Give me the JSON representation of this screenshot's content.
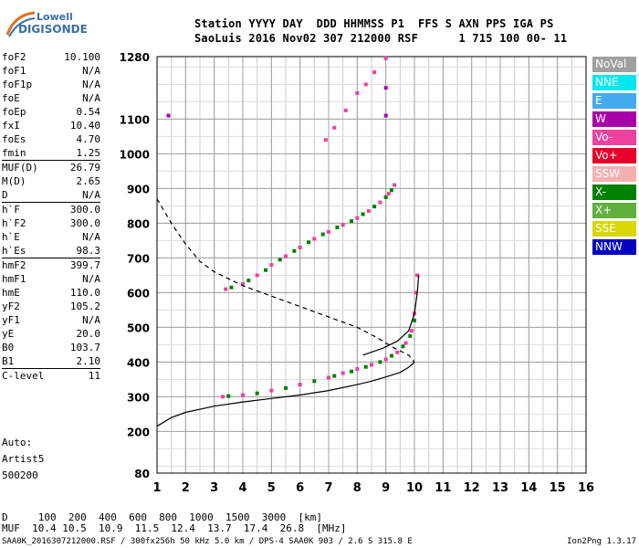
{
  "header": {
    "line1": "Station YYYY DAY  DDD HHMMSS P1  FFS S AXN PPS IGA PS",
    "line2": "SaoLuis 2016 Nov02 307 212000 RSF      1 715 100 00- 11"
  },
  "logo": {
    "line1": "Lowell",
    "line2": "DIGISONDE"
  },
  "params": [
    {
      "label": "foF2",
      "value": "10.100"
    },
    {
      "label": "foF1",
      "value": "N/A"
    },
    {
      "label": "foF1p",
      "value": "N/A"
    },
    {
      "label": "foE",
      "value": "N/A"
    },
    {
      "label": "foEp",
      "value": "0.54"
    },
    {
      "label": "fxI",
      "value": "10.40"
    },
    {
      "label": "foEs",
      "value": "4.70"
    },
    {
      "label": "fmin",
      "value": "1.25"
    },
    {
      "label": "MUF(D)",
      "value": "26.79",
      "sep": true
    },
    {
      "label": "M(D)",
      "value": "2.65"
    },
    {
      "label": "D",
      "value": "N/A"
    },
    {
      "label": "h`F",
      "value": "300.0",
      "sep": true
    },
    {
      "label": "h`F2",
      "value": "300.0"
    },
    {
      "label": "h`E",
      "value": "N/A"
    },
    {
      "label": "h`Es",
      "value": "98.3"
    },
    {
      "label": "hmF2",
      "value": "399.7",
      "sep": true
    },
    {
      "label": "hmF1",
      "value": "N/A"
    },
    {
      "label": "hmE",
      "value": "110.0"
    },
    {
      "label": "yF2",
      "value": "105.2"
    },
    {
      "label": "yF1",
      "value": "N/A"
    },
    {
      "label": "yE",
      "value": "20.0"
    },
    {
      "label": "B0",
      "value": "103.7"
    },
    {
      "label": "B1",
      "value": "2.10"
    },
    {
      "label": "C-level",
      "value": "11",
      "sep": true
    }
  ],
  "auto": {
    "line1": "Auto:",
    "line2": "Artist5",
    "line3": "500200"
  },
  "legend": [
    {
      "label": "NoVal",
      "color": "#a0a0a0"
    },
    {
      "label": "NNE",
      "color": "#00e8f0"
    },
    {
      "label": "E",
      "color": "#44aaee"
    },
    {
      "label": "W",
      "color": "#a800a8"
    },
    {
      "label": "Vo-",
      "color": "#f040a0"
    },
    {
      "label": "Vo+",
      "color": "#e8002a"
    },
    {
      "label": "SSW",
      "color": "#f4b0b0"
    },
    {
      "label": "X-",
      "color": "#008000"
    },
    {
      "label": "X+",
      "color": "#60b040"
    },
    {
      "label": "SSE",
      "color": "#d8d800"
    },
    {
      "label": "NNW",
      "color": "#0000c0"
    }
  ],
  "footer": {
    "line1": "D     100  200  400  600  800  1000  1500  3000  [km]",
    "line2": "MUF  10.4 10.5  10.9  11.5  12.4  13.7  17.4  26.8  [MHz]",
    "filename": "SAA0K_2016307212000.RSF / 300fx256h 50 kHz 5.0 km / DPS-4 SAA0K 903 / 2.6 S 315.8 E",
    "version": "Ion2Png 1.3.17"
  },
  "chart_data": {
    "type": "scatter",
    "xlim": [
      1,
      16
    ],
    "ylim": [
      80,
      1280
    ],
    "x_ticks": [
      1,
      2,
      3,
      4,
      5,
      6,
      7,
      8,
      9,
      10,
      11,
      12,
      13,
      14,
      15,
      16
    ],
    "y_ticks": [
      80,
      200,
      300,
      400,
      500,
      600,
      700,
      800,
      900,
      1000,
      1100,
      1280
    ],
    "y_tick_labels": [
      "80",
      "200",
      "300",
      "400",
      "500",
      "600",
      "700",
      "800",
      "900",
      "1000",
      "1100",
      "1280"
    ],
    "series": [
      {
        "color": "#f040a0",
        "points": [
          [
            3.3,
            300
          ],
          [
            4.0,
            305
          ],
          [
            5.0,
            318
          ],
          [
            6.0,
            335
          ],
          [
            7.0,
            355
          ],
          [
            7.5,
            368
          ],
          [
            8.0,
            380
          ],
          [
            8.5,
            392
          ],
          [
            9.0,
            408
          ],
          [
            9.4,
            428
          ],
          [
            9.7,
            455
          ],
          [
            9.9,
            490
          ],
          [
            10.0,
            540
          ],
          [
            10.05,
            600
          ],
          [
            10.1,
            650
          ]
        ]
      },
      {
        "color": "#008000",
        "points": [
          [
            3.5,
            302
          ],
          [
            4.5,
            310
          ],
          [
            5.5,
            325
          ],
          [
            6.5,
            345
          ],
          [
            7.2,
            360
          ],
          [
            7.8,
            373
          ],
          [
            8.3,
            386
          ],
          [
            8.8,
            400
          ],
          [
            9.2,
            418
          ],
          [
            9.6,
            445
          ],
          [
            9.85,
            475
          ],
          [
            10.0,
            520
          ]
        ]
      },
      {
        "color": "#f040a0",
        "points": [
          [
            3.4,
            610
          ],
          [
            4.0,
            625
          ],
          [
            4.5,
            650
          ],
          [
            5.0,
            680
          ],
          [
            5.5,
            705
          ],
          [
            6.0,
            730
          ],
          [
            6.5,
            755
          ],
          [
            7.0,
            775
          ],
          [
            7.5,
            795
          ],
          [
            8.0,
            815
          ],
          [
            8.4,
            835
          ],
          [
            8.8,
            860
          ],
          [
            9.1,
            885
          ],
          [
            9.3,
            910
          ]
        ]
      },
      {
        "color": "#008000",
        "points": [
          [
            3.6,
            615
          ],
          [
            4.2,
            635
          ],
          [
            4.8,
            665
          ],
          [
            5.3,
            695
          ],
          [
            5.8,
            720
          ],
          [
            6.3,
            745
          ],
          [
            6.8,
            768
          ],
          [
            7.3,
            788
          ],
          [
            7.8,
            806
          ],
          [
            8.2,
            826
          ],
          [
            8.6,
            848
          ],
          [
            9.0,
            875
          ],
          [
            9.2,
            895
          ]
        ]
      },
      {
        "color": "#f040a0",
        "points": [
          [
            6.9,
            1040
          ],
          [
            7.2,
            1075
          ],
          [
            7.6,
            1125
          ],
          [
            8.0,
            1175
          ],
          [
            8.3,
            1200
          ],
          [
            8.6,
            1235
          ],
          [
            9.0,
            1275
          ]
        ]
      },
      {
        "color": "#a800a8",
        "points": [
          [
            1.4,
            1110
          ],
          [
            9.0,
            1190
          ],
          [
            9.0,
            1110
          ]
        ]
      }
    ],
    "curves": [
      {
        "style": "solid",
        "points": [
          [
            1.0,
            215
          ],
          [
            1.5,
            240
          ],
          [
            2.0,
            255
          ],
          [
            3.0,
            273
          ],
          [
            4.0,
            285
          ],
          [
            5.0,
            295
          ],
          [
            6.0,
            305
          ],
          [
            7.0,
            318
          ],
          [
            8.0,
            335
          ],
          [
            8.5,
            345
          ],
          [
            9.0,
            357
          ],
          [
            9.5,
            370
          ],
          [
            9.8,
            385
          ],
          [
            10.0,
            400
          ]
        ]
      },
      {
        "style": "solid",
        "points": [
          [
            8.2,
            420
          ],
          [
            8.9,
            440
          ],
          [
            9.4,
            460
          ],
          [
            9.8,
            490
          ],
          [
            10.0,
            540
          ],
          [
            10.1,
            600
          ],
          [
            10.15,
            650
          ]
        ]
      },
      {
        "style": "dashed",
        "points": [
          [
            1.0,
            870
          ],
          [
            1.5,
            800
          ],
          [
            2.0,
            740
          ],
          [
            2.5,
            690
          ],
          [
            3.0,
            660
          ],
          [
            4.0,
            620
          ],
          [
            5.0,
            590
          ],
          [
            6.0,
            560
          ],
          [
            7.0,
            530
          ],
          [
            8.0,
            500
          ],
          [
            8.7,
            470
          ],
          [
            9.3,
            440
          ],
          [
            9.8,
            420
          ],
          [
            10.0,
            400
          ]
        ]
      }
    ]
  }
}
